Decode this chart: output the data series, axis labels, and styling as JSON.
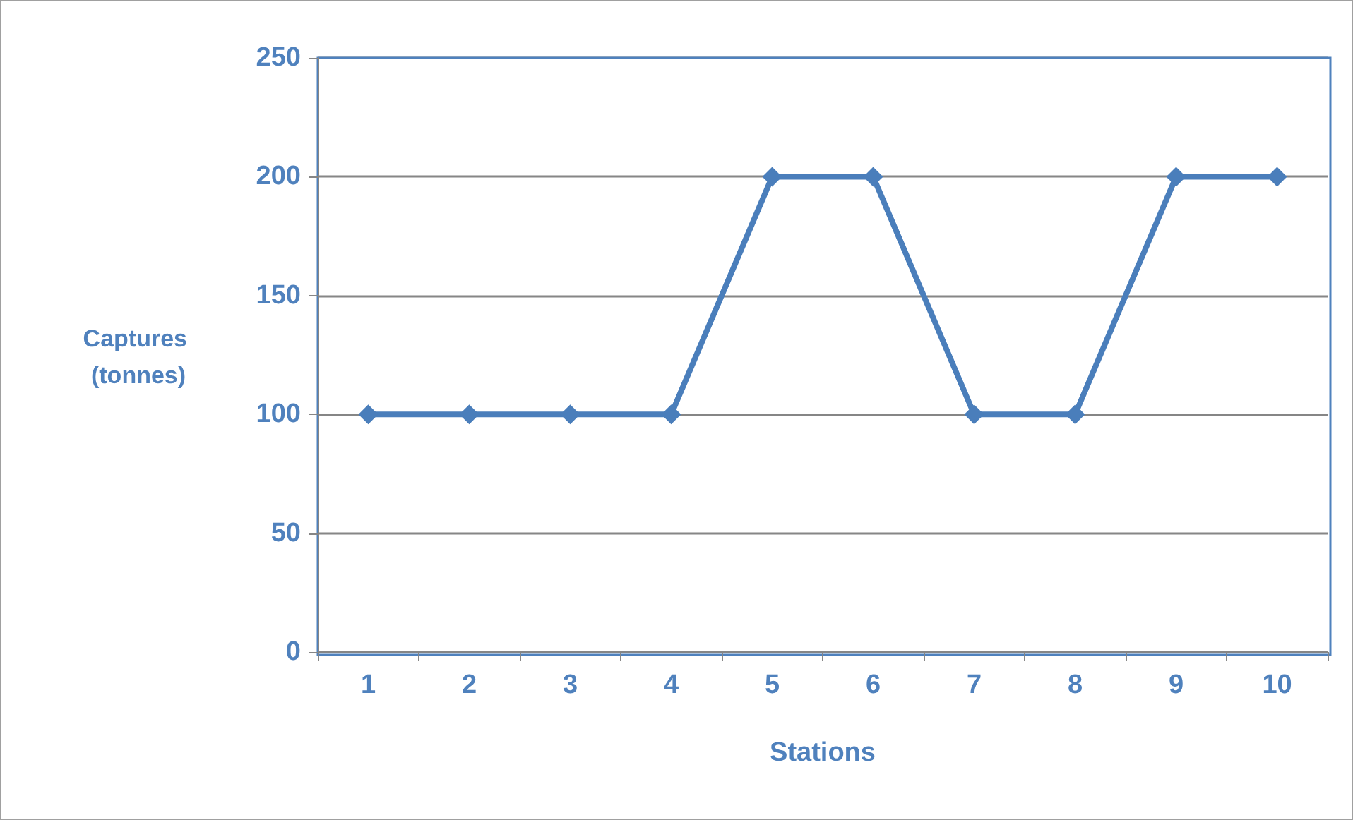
{
  "chart_data": {
    "type": "line",
    "xlabel": "Stations",
    "ylabel": "Captures (tonnes)",
    "categories": [
      "1",
      "2",
      "3",
      "4",
      "5",
      "6",
      "7",
      "8",
      "9",
      "10"
    ],
    "series": [
      {
        "color": "#4a7ebb",
        "values": [
          100,
          100,
          100,
          100,
          200,
          200,
          100,
          100,
          200,
          200
        ]
      }
    ],
    "ylim": [
      0,
      250
    ],
    "yticks": [
      0,
      50,
      100,
      150,
      200,
      250
    ],
    "grid": "y",
    "marker": "diamond",
    "line_style": "solid"
  }
}
